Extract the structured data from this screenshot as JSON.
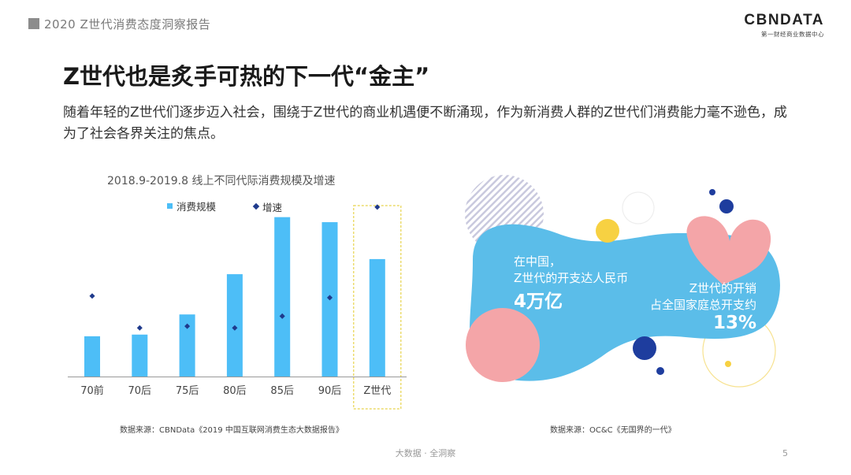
{
  "header": {
    "title": "2020 Z世代消费态度洞察报告"
  },
  "logo": {
    "main": "CBNDATA",
    "sub": "第一财经商业数据中心"
  },
  "slide": {
    "title": "Z世代也是炙手可热的下一代“金主”",
    "intro": "随着年轻的Z世代们逐步迈入社会，围绕于Z世代的商业机遇便不断涌现，作为新消费人群的Z世代们消费能力毫不逊色，成为了社会各界关注的焦点。"
  },
  "chart_data": {
    "type": "bar",
    "title": "2018.9-2019.8 线上不同代际消费规模及增速",
    "categories": [
      "70前",
      "70后",
      "75后",
      "80后",
      "85后",
      "90后",
      "Z世代"
    ],
    "series": [
      {
        "name": "消费规模",
        "kind": "bar",
        "color": "#4dbef7",
        "values": [
          24,
          25,
          37,
          61,
          95,
          92,
          70
        ]
      },
      {
        "name": "增速",
        "kind": "point",
        "color": "#1f3a8c",
        "values": [
          48,
          29,
          30,
          29,
          36,
          47,
          101
        ]
      }
    ],
    "highlight_category": "Z世代",
    "ylim": [
      0,
      100
    ],
    "grid": false,
    "legend_position": "top",
    "y_axis_labels_shown": false
  },
  "illustration": {
    "stat1": {
      "line1": "在中国，",
      "line2": "Z世代的开支达人民币",
      "big": "4万亿"
    },
    "stat2": {
      "line1": "Z世代的开销",
      "line2": "占全国家庭总开支约",
      "big": "13%"
    },
    "colors": {
      "blob": "#5bbde9",
      "pink": "#f4a5a8",
      "yellow": "#f7d142",
      "navy": "#1e3d9e",
      "stripe": "#c9c9de"
    }
  },
  "sources": {
    "left": "数据来源：CBNData《2019 中国互联网消费生态大数据报告》",
    "right": "数据来源：OC&C《无国界的一代》"
  },
  "footer": {
    "center": "大数据 · 全洞察",
    "page": "5"
  }
}
